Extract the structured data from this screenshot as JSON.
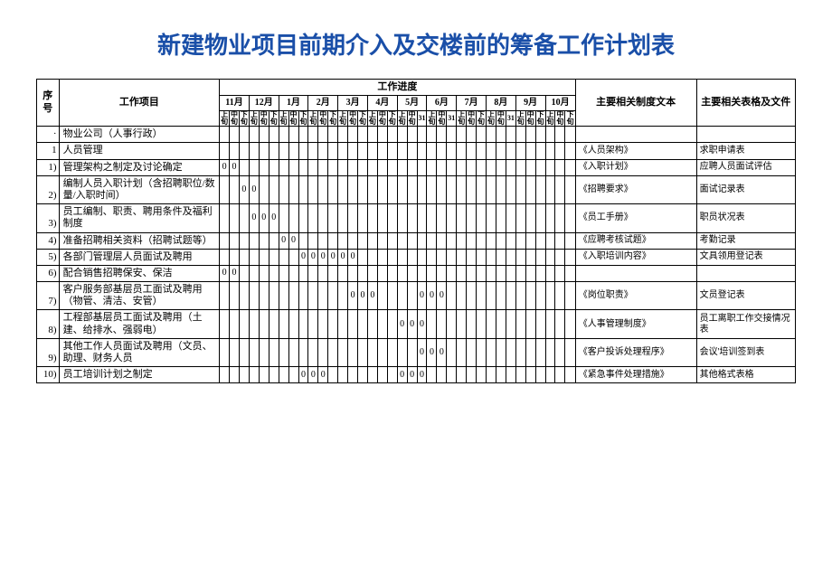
{
  "title": "新建物业项目前期介入及交楼前的筹备工作计划表",
  "headers": {
    "seq": "序号",
    "item": "工作项目",
    "progress": "工作进度",
    "doc": "主要相关制度文本",
    "form": "主要相关表格及文件"
  },
  "months": [
    "11月",
    "12月",
    "1月",
    "2月",
    "3月",
    "4月",
    "5月",
    "6月",
    "7月",
    "8月",
    "9月",
    "10月"
  ],
  "periods": [
    "上旬",
    "中旬",
    "下旬",
    "上旬",
    "中旬",
    "下旬",
    "上旬",
    "中旬",
    "下旬",
    "上旬",
    "中旬",
    "下旬",
    "上旬",
    "中旬",
    "下旬",
    "上旬",
    "中旬",
    "下旬",
    "上旬",
    "中旬",
    "31",
    "上旬",
    "中旬",
    "31",
    "上旬",
    "中旬",
    "下旬",
    "上旬",
    "中旬",
    "31",
    "上旬",
    "中旬",
    "下旬",
    "上旬",
    "中旬",
    "下旬"
  ],
  "section": {
    "seq": "·",
    "item": "物业公司（人事行政）"
  },
  "rows": [
    {
      "seq": "1",
      "item": "人员管理",
      "marks": [],
      "doc": "《人员架构》",
      "form": "求职申请表"
    },
    {
      "seq": "1)",
      "item": "管理架构之制定及讨论确定",
      "marks": [
        0,
        1
      ],
      "doc": "《入职计划》",
      "form": "应聘人员面试评估"
    },
    {
      "seq": "2)",
      "item": "编制人员入职计划（含招聘职位/数量/入职时间）",
      "marks": [
        2,
        3
      ],
      "doc": "《招聘要求》",
      "form": "面试记录表"
    },
    {
      "seq": "3)",
      "item": "员工编制、职责、聘用条件及福利制度",
      "marks": [
        3,
        4,
        5
      ],
      "doc": "《员工手册》",
      "form": "职员状况表"
    },
    {
      "seq": "4)",
      "item": "准备招聘相关资料（招聘试题等）",
      "marks": [
        6,
        7
      ],
      "doc": "《应聘考核试题》",
      "form": "考勤记录"
    },
    {
      "seq": "5)",
      "item": "各部门管理层人员面试及聘用",
      "marks": [
        8,
        9,
        10,
        11,
        12,
        13
      ],
      "doc": "《入职培训内容》",
      "form": "文具领用登记表"
    },
    {
      "seq": "6)",
      "item": "配合销售招聘保安、保洁",
      "marks": [
        0,
        1
      ],
      "doc": "",
      "form": ""
    },
    {
      "seq": "7)",
      "item": "客户服务部基层员工面试及聘用（物管、清洁、安管）",
      "marks": [
        13,
        14,
        15,
        20,
        21,
        22
      ],
      "doc": "《岗位职责》",
      "form": "文员登记表"
    },
    {
      "seq": "8)",
      "item": "工程部基层员工面试及聘用（土建、给排水、强弱电）",
      "marks": [
        18,
        19,
        20
      ],
      "doc": "《人事管理制度》",
      "form": "员工离职工作交接情况表"
    },
    {
      "seq": "9)",
      "item": "其他工作人员面试及聘用（文员、助理、财务人员",
      "marks": [
        20,
        21,
        22
      ],
      "doc": "《客户投诉处理程序》",
      "form": "会议'培训签到表"
    },
    {
      "seq": "10)",
      "item": "员工培训计划之制定",
      "marks": [
        8,
        9,
        10,
        18,
        19,
        20
      ],
      "doc": "《紧急事件处理措施》",
      "form": "其他格式表格"
    }
  ]
}
